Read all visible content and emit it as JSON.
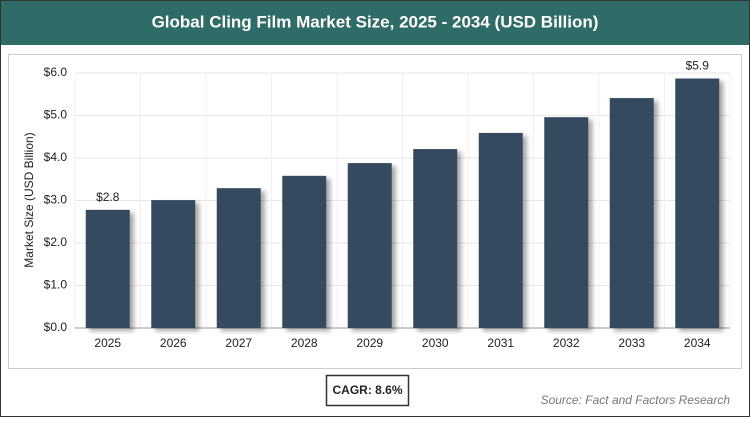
{
  "chart_data": {
    "type": "bar",
    "title": "Global Cling Film Market Size, 2025 - 2034 (USD Billion)",
    "y_label": "Market Size (USD Billion)",
    "categories": [
      "2025",
      "2026",
      "2027",
      "2028",
      "2029",
      "2030",
      "2031",
      "2032",
      "2033",
      "2034"
    ],
    "values": [
      2.78,
      3.01,
      3.29,
      3.58,
      3.88,
      4.21,
      4.59,
      4.96,
      5.41,
      5.87
    ],
    "value_labels": [
      "$2.8",
      null,
      null,
      null,
      null,
      null,
      null,
      null,
      null,
      "$5.9"
    ],
    "color": "#364a5e",
    "ylim": [
      0,
      6
    ],
    "yticks": [
      {
        "value": 0,
        "label": "$0.0"
      },
      {
        "value": 1,
        "label": "$1.0"
      },
      {
        "value": 2,
        "label": "$2.0"
      },
      {
        "value": 3,
        "label": "$3.0"
      },
      {
        "value": 4,
        "label": "$4.0"
      },
      {
        "value": 5,
        "label": "$5.0"
      },
      {
        "value": 6,
        "label": "$6.0"
      }
    ],
    "grid": true,
    "cagr": "CAGR: 8.6%",
    "source": "Source: Fact and Factors Research"
  }
}
